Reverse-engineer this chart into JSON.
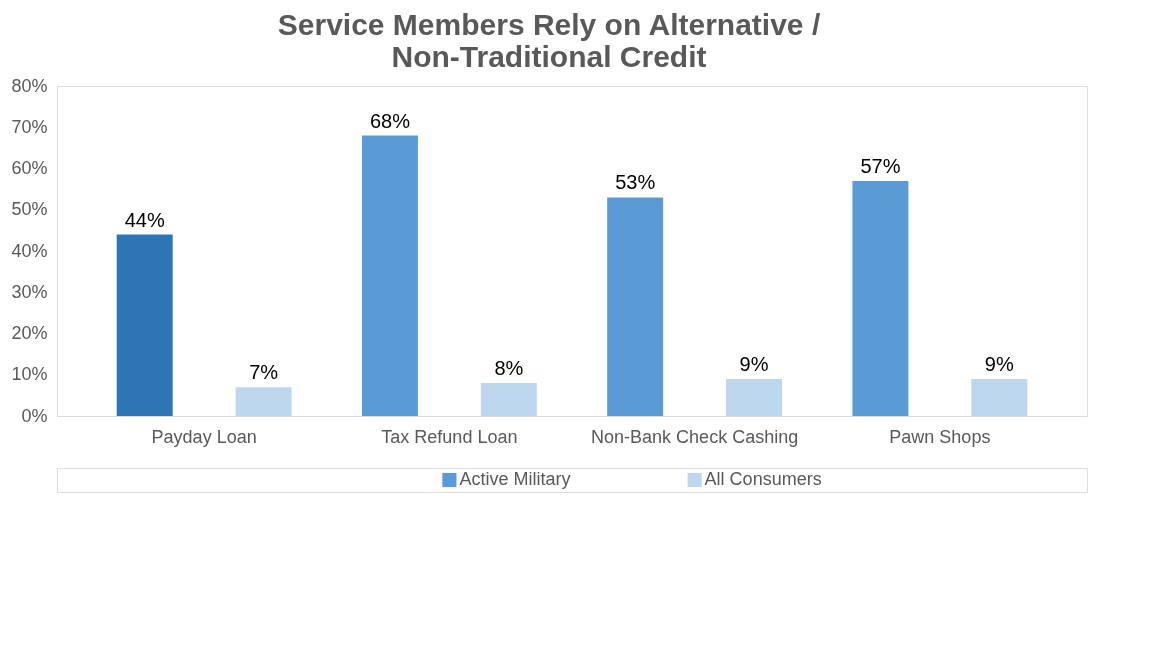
{
  "chart_data": {
    "type": "bar",
    "title": [
      "Service Members Rely on Alternative /",
      "Non-Traditional Credit"
    ],
    "categories": [
      "Payday Loan",
      "Tax Refund Loan",
      "Non-Bank Check Cashing",
      "Pawn Shops"
    ],
    "series": [
      {
        "name": "Active Military",
        "color": "#5b9bd5",
        "colors": [
          "#2e75b6",
          "#5b9bd5",
          "#5b9bd5",
          "#5b9bd5"
        ],
        "values": [
          44,
          68,
          53,
          57
        ]
      },
      {
        "name": "All Consumers",
        "color": "#bdd7ee",
        "values": [
          7,
          8,
          9,
          9
        ]
      }
    ],
    "value_labels": [
      [
        "44%",
        "68%",
        "53%",
        "57%"
      ],
      [
        "7%",
        "8%",
        "9%",
        "9%"
      ]
    ],
    "ylim": [
      0,
      80
    ],
    "yticks": [
      {
        "value": 0,
        "label": "0%"
      },
      {
        "value": 10,
        "label": "10%"
      },
      {
        "value": 20,
        "label": "20%"
      },
      {
        "value": 30,
        "label": "30%"
      },
      {
        "value": 40,
        "label": "40%"
      },
      {
        "value": 50,
        "label": "50%"
      },
      {
        "value": 60,
        "label": "60%"
      },
      {
        "value": 70,
        "label": "70%"
      },
      {
        "value": 80,
        "label": "80%"
      }
    ],
    "grid": false,
    "legend": "bottom"
  }
}
